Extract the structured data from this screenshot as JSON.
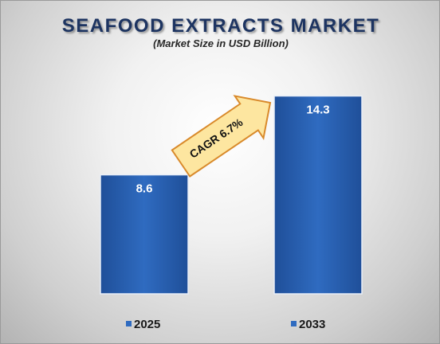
{
  "chart_data": {
    "type": "bar",
    "title": "SEAFOOD EXTRACTS MARKET",
    "subtitle": "(Market Size in USD Billion)",
    "categories": [
      "2025",
      "2033"
    ],
    "values": [
      8.6,
      14.3
    ],
    "value_labels": [
      "8.6",
      "14.3"
    ],
    "ylim": [
      0,
      16
    ],
    "grid": false,
    "legend_placement": "bottom",
    "annotation": "CAGR 6.7%",
    "colors": {
      "bar": "#2f6bc0",
      "bar_dark": "#1f4f99",
      "arrow_fill": "#fde6a0",
      "arrow_stroke": "#d98a2b",
      "legend_marker": "#2f6bc0"
    }
  }
}
